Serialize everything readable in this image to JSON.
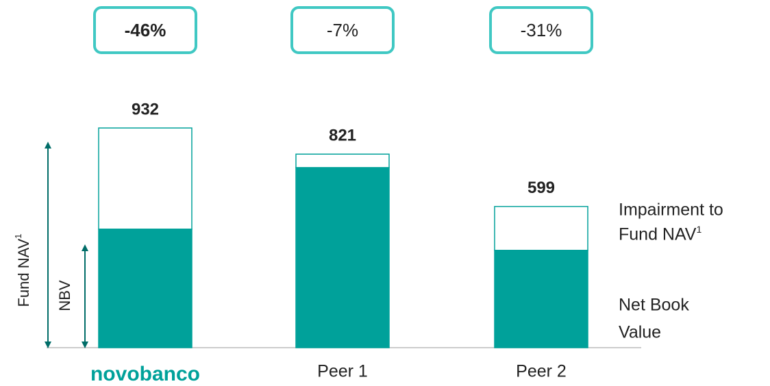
{
  "chart_data": {
    "type": "stacked_bar",
    "categories": [
      "novobanco",
      "Peer 1",
      "Peer 2"
    ],
    "series": [
      {
        "name": "Net Book Value",
        "color": "#00a19a",
        "values": [
          503,
          764,
          413
        ]
      },
      {
        "name": "Impairment to Fund NAV",
        "color": "#ffffff",
        "values": [
          429,
          57,
          186
        ]
      }
    ],
    "totals": [
      932,
      821,
      599
    ],
    "change_values": [
      -46,
      -7,
      -31
    ],
    "change_labels": [
      "-46%",
      "-7%",
      "-31%"
    ],
    "side_labels": [
      "Fund NAV",
      "NBV"
    ],
    "footnote_mark": "1"
  }
}
